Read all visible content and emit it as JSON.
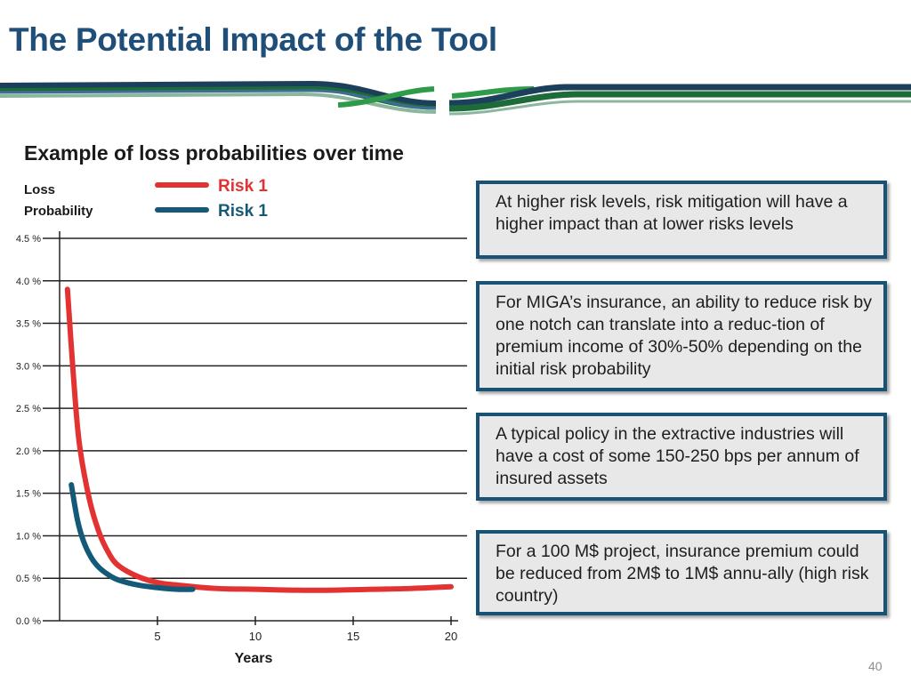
{
  "slide": {
    "title": "The Potential Impact of the Tool",
    "page_number": "40"
  },
  "colors": {
    "title": "#1f4e79",
    "risk_high": "#e23232",
    "risk_low": "#145a78",
    "callout_border": "#1a5276",
    "callout_fill": "#e8e8e8"
  },
  "callouts": [
    {
      "text": "At higher risk levels, risk mitigation will have a higher impact than at lower risks levels"
    },
    {
      "text": "For MIGA’s insurance, an ability to reduce risk by one notch can translate into a reduc-tion of premium income of 30%-50% depending on the initial risk probability"
    },
    {
      "text": "A typical policy in the extractive industries will have a cost of some 150-250 bps per annum of insured assets"
    },
    {
      "text": "For a 100 M$ project, insurance premium could be reduced from  2M$ to 1M$ annu-ally (high risk country)"
    }
  ],
  "chart_data": {
    "type": "line",
    "title": "Example of loss probabilities over time",
    "xlabel": "Years",
    "ylabel": "Loss Probability",
    "xlim": [
      0,
      20
    ],
    "ylim": [
      0,
      4.5
    ],
    "x_ticks": [
      5,
      10,
      15,
      20
    ],
    "x_tick_labels": [
      "5",
      "10",
      "15",
      "20"
    ],
    "y_ticks": [
      0,
      0.5,
      1.0,
      1.5,
      2.0,
      2.5,
      3.0,
      3.5,
      4.0,
      4.5
    ],
    "y_tick_labels": [
      "0.0 %",
      "0.5 %",
      "1.0 %",
      "1.5 %",
      "2.0 %",
      "2.5 %",
      "3.0 %",
      "3.5 %",
      "4.0 %",
      "4.5 %"
    ],
    "grid": true,
    "legend_position": "top-center",
    "series": [
      {
        "name": "Risk 1",
        "color": "#e23232",
        "x": [
          0.4,
          0.7,
          1.0,
          1.5,
          2.0,
          2.5,
          3.0,
          4.0,
          5.0,
          6.0,
          8.0,
          10.0,
          12.0,
          14.0,
          16.0,
          18.0,
          20.0
        ],
        "y": [
          3.9,
          2.9,
          2.1,
          1.45,
          1.05,
          0.8,
          0.65,
          0.52,
          0.45,
          0.42,
          0.38,
          0.37,
          0.36,
          0.36,
          0.37,
          0.38,
          0.4
        ]
      },
      {
        "name": "Risk 1",
        "color": "#145a78",
        "x": [
          0.6,
          0.9,
          1.2,
          1.6,
          2.0,
          2.5,
          3.0,
          4.0,
          5.0,
          6.0,
          6.8
        ],
        "y": [
          1.6,
          1.2,
          0.95,
          0.75,
          0.63,
          0.54,
          0.48,
          0.42,
          0.39,
          0.37,
          0.37
        ]
      }
    ]
  }
}
